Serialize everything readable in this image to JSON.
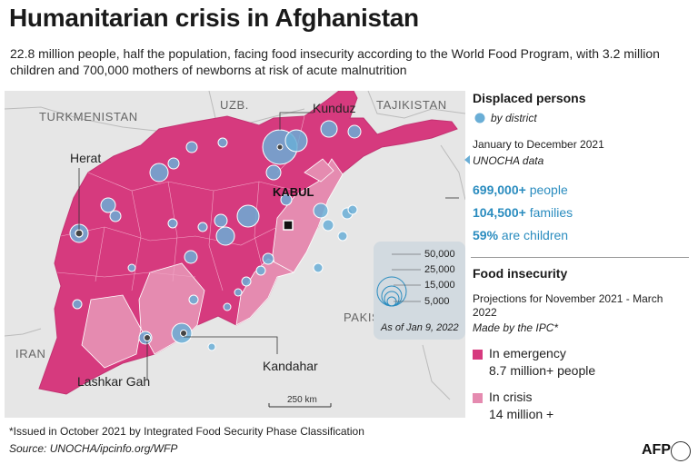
{
  "title": "Humanitarian crisis in Afghanistan",
  "subtitle": "22.8 million people, half the population, facing food insecurity according to the World Food Program, with 3.2 million children and 700,000 mothers of newborns at risk of acute malnutrition",
  "map": {
    "countries": [
      "TURKMENISTAN",
      "UZB.",
      "TAJIKISTAN",
      "PAKISTAN",
      "IRAN"
    ],
    "cities": [
      "Kunduz",
      "Herat",
      "KABUL",
      "Lashkar Gah",
      "Kandahar"
    ],
    "scale_label": "250 km",
    "bubble_legend": {
      "values": [
        "50,000",
        "25,000",
        "15,000",
        "5,000"
      ],
      "as_of": "As of Jan 9, 2022"
    }
  },
  "displaced": {
    "heading": "Displaced persons",
    "by_district": "by district",
    "period": "January to December 2021",
    "source_note": "UNOCHA data",
    "people_value": "699,000+",
    "people_label": "people",
    "families_value": "104,500+",
    "families_label": "families",
    "children_value": "59%",
    "children_label": "are children"
  },
  "food": {
    "heading": "Food insecurity",
    "projection": "Projections for November 2021 - March 2022",
    "made_by": "Made by the IPC*",
    "emergency_label": "In emergency",
    "emergency_value": "8.7 million+ people",
    "crisis_label": "In crisis",
    "crisis_value": "14 million +"
  },
  "colors": {
    "emergency": "#d63a7e",
    "crisis": "#e58bb0",
    "bubble": "#6aaed6",
    "accent": "#2a8cbf",
    "background_land": "#e6e6e6"
  },
  "footnote": "*Issued in October 2021 by Integrated Food Security Phase Classification",
  "source": "Source: UNOCHA/ipcinfo.org/WFP",
  "logo": "AFP"
}
